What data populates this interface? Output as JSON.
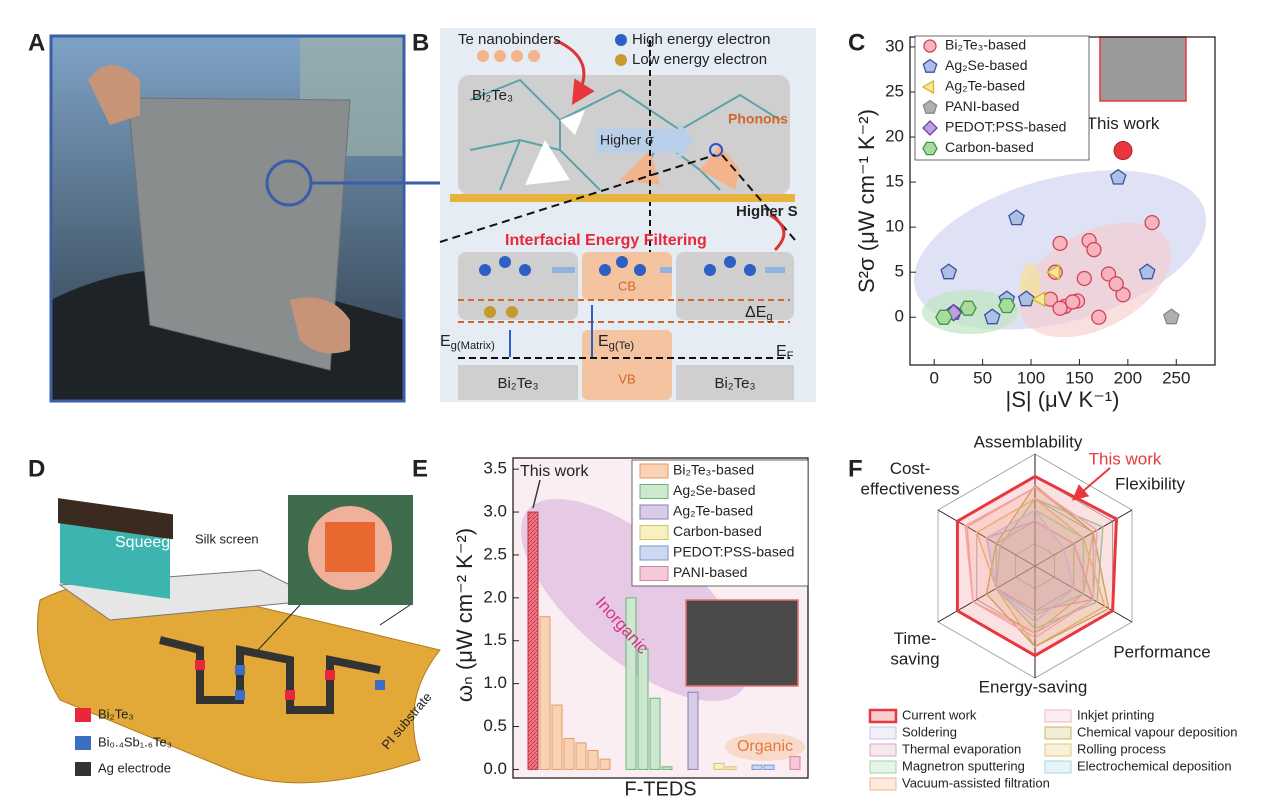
{
  "panel_labels": [
    "A",
    "B",
    "C",
    "D",
    "E",
    "F"
  ],
  "panel_b": {
    "te_nanobinders": "Te nanobinders",
    "high_energy": "High energy electron",
    "low_energy": "Low energy electron",
    "matrix": "Bi₂Te₃",
    "higher_sigma": "Higher σ",
    "phonons": "Phonons",
    "higher_s": "Higher S",
    "filtering": "Interfacial Energy Filtering",
    "cb": "CB",
    "vb": "VB",
    "delta_eg": "ΔEg",
    "eg_matrix": "Eg(Matrix)",
    "eg_te": "Eg(Te)",
    "ef": "EF",
    "bottom_left": "Bi₂Te₃",
    "bottom_right": "Bi₂Te₃"
  },
  "panel_d": {
    "squeegee": "Squeegee",
    "silk_screen": "Silk screen",
    "substrate": "PI substrate",
    "legend": [
      {
        "name": "Bi₂Te₃",
        "color": "#e8283a"
      },
      {
        "name": "Bi₀.₄Sb₁.₆Te₃",
        "color": "#3a6fc4"
      },
      {
        "name": "Ag electrode",
        "color": "#333333"
      }
    ]
  },
  "chart_data": [
    {
      "type": "scatter",
      "xlabel": "|S| (μV K⁻¹)",
      "ylabel": "S²σ (μW cm⁻¹ K⁻²)",
      "xlim": [
        -25,
        290
      ],
      "ylim": [
        -5.3,
        31.1
      ],
      "xticks": [
        0,
        50,
        100,
        150,
        200,
        250
      ],
      "yticks": [
        0,
        5,
        10,
        15,
        20,
        25,
        30
      ],
      "highlight": {
        "label": "This work",
        "x": 195,
        "y": 18.5,
        "color": "#e8383d"
      },
      "series": [
        {
          "name": "Bi₂Te₃-based",
          "color": "#f7b4bf",
          "edgecolor": "#d0435a",
          "marker": "circle",
          "x": [
            225,
            160,
            130,
            165,
            125,
            180,
            195,
            188,
            155,
            135,
            120,
            148,
            130,
            170,
            143
          ],
          "values": [
            10.5,
            8.5,
            8.2,
            7.5,
            5,
            4.8,
            2.5,
            3.7,
            4.3,
            1.2,
            2,
            1.8,
            1,
            0,
            1.7
          ]
        },
        {
          "name": "Ag₂Se-based",
          "color": "#aebfe6",
          "edgecolor": "#3a53a0",
          "marker": "pentagon",
          "x": [
            190,
            85,
            15,
            220,
            75,
            95,
            60,
            20
          ],
          "values": [
            15.5,
            11,
            5,
            5,
            2,
            2,
            0,
            0.5
          ]
        },
        {
          "name": "Ag₂Te-based",
          "color": "#f5e6a0",
          "edgecolor": "#d8b52a",
          "marker": "triangle",
          "x": [
            125,
            110
          ],
          "values": [
            5,
            2
          ]
        },
        {
          "name": "PANI-based",
          "color": "#b0b0b0",
          "edgecolor": "#888888",
          "marker": "pentagon",
          "x": [
            245
          ],
          "values": [
            0
          ]
        },
        {
          "name": "PEDOT:PSS-based",
          "color": "#b9a3dc",
          "edgecolor": "#6b3fa6",
          "marker": "diamond",
          "x": [
            20
          ],
          "values": [
            0.5
          ]
        },
        {
          "name": "Carbon-based",
          "color": "#a9dba0",
          "edgecolor": "#3a9a3a",
          "marker": "hexagon",
          "x": [
            10,
            35,
            75
          ],
          "values": [
            0,
            1,
            1.3
          ]
        }
      ]
    },
    {
      "type": "bar",
      "xlabel": "F-TEDS",
      "ylabel": "ωₙ (μW cm⁻² K⁻²)",
      "ylim": [
        -0.1,
        3.63
      ],
      "yticks": [
        {
          "value": 0,
          "label": "0.0"
        },
        0.5,
        {
          "value": 1,
          "label": "1.0"
        },
        1.5,
        {
          "value": 2,
          "label": "2.0"
        },
        2.5,
        {
          "value": 3,
          "label": "3.0"
        },
        3.5
      ],
      "annotations": [
        "This work",
        "Inorganic",
        "Organic"
      ],
      "highlight": {
        "series": 0,
        "index": 0,
        "color": "#f07a87"
      },
      "categories": [
        null,
        null,
        null,
        null,
        null,
        null,
        null,
        null,
        null,
        null,
        null,
        null,
        null,
        null,
        null,
        null,
        null
      ],
      "series": [
        {
          "name": "Bi₂Te₃-based",
          "color": "#f9d2b4",
          "edgecolor": "#e69a66",
          "values": [
            3.0,
            1.78,
            0.75,
            0.36,
            0.31,
            0.22,
            0.12,
            null,
            null,
            null,
            null,
            null,
            null,
            null,
            null,
            null,
            null
          ]
        },
        {
          "name": "Ag₂Se-based",
          "color": "#cce8cf",
          "edgecolor": "#6cb27a",
          "values": [
            null,
            null,
            null,
            null,
            null,
            null,
            null,
            2.0,
            1.4,
            0.83,
            0.03,
            null,
            null,
            null,
            null,
            null,
            null
          ]
        },
        {
          "name": "Ag₂Te-based",
          "color": "#d8cde9",
          "edgecolor": "#8f7cb8",
          "values": [
            null,
            null,
            null,
            null,
            null,
            null,
            null,
            null,
            null,
            null,
            null,
            0.9,
            null,
            null,
            null,
            null,
            null
          ]
        },
        {
          "name": "Carbon-based",
          "color": "#f7f0c0",
          "edgecolor": "#d1c36a",
          "values": [
            null,
            null,
            null,
            null,
            null,
            null,
            null,
            null,
            null,
            null,
            null,
            null,
            0.07,
            0.03,
            null,
            null,
            null
          ]
        },
        {
          "name": "PEDOT:PSS-based",
          "color": "#cdd9f0",
          "edgecolor": "#7d95cc",
          "values": [
            null,
            null,
            null,
            null,
            null,
            null,
            null,
            null,
            null,
            null,
            null,
            null,
            null,
            null,
            0.05,
            0.05,
            null
          ]
        },
        {
          "name": "PANI-based",
          "color": "#f4cad9",
          "edgecolor": "#d8809f",
          "values": [
            null,
            null,
            null,
            null,
            null,
            null,
            null,
            null,
            null,
            null,
            null,
            null,
            null,
            null,
            null,
            null,
            0.15
          ]
        }
      ]
    },
    {
      "type": "radar",
      "axes": [
        "Assemblability",
        "Flexibility",
        "Performance",
        "Energy-saving",
        "Time-saving",
        "Cost-effectiveness"
      ],
      "rlim": [
        0,
        5
      ],
      "rticks": [
        1,
        2,
        3,
        4,
        5
      ],
      "annotation": "This work",
      "series": [
        {
          "name": "Current work",
          "color": "#e8383d",
          "values": [
            4,
            4.2,
            4,
            4,
            4,
            4
          ]
        },
        {
          "name": "Inkjet printing",
          "color": "#f4b6c2",
          "values": [
            3.5,
            3.2,
            3,
            3.2,
            3.2,
            3.6
          ]
        },
        {
          "name": "Soldering",
          "color": "#c9c3e6",
          "values": [
            2.5,
            1.5,
            2,
            2.5,
            2,
            2.5
          ]
        },
        {
          "name": "Chemical vapour deposition",
          "color": "#c8b560",
          "values": [
            3.6,
            3,
            3.8,
            3.6,
            2.5,
            2
          ]
        },
        {
          "name": "Thermal evaporation",
          "color": "#d9a9bb",
          "values": [
            2,
            2,
            3,
            2,
            2,
            2.5
          ]
        },
        {
          "name": "Rolling process",
          "color": "#e8c470",
          "values": [
            3,
            2.5,
            3.6,
            3.6,
            2,
            3
          ]
        },
        {
          "name": "Magnetron sputtering",
          "color": "#9fd3a8",
          "values": [
            3,
            3.5,
            3.2,
            2.8,
            2,
            1.8
          ]
        },
        {
          "name": "Electrochemical deposition",
          "color": "#9fd8e0",
          "values": [
            2.5,
            2.5,
            2.5,
            2.2,
            2,
            2.5
          ]
        },
        {
          "name": "Vacuum-assisted filtration",
          "color": "#f5b383",
          "values": [
            3.5,
            3,
            2.5,
            3,
            3.2,
            3.5
          ]
        }
      ]
    }
  ]
}
